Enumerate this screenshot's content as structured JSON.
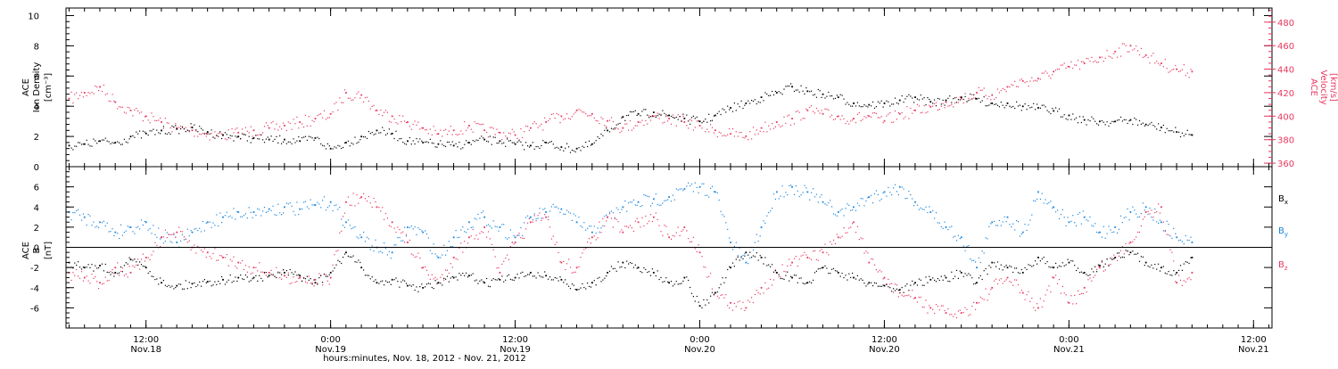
{
  "colors": {
    "density": "#000000",
    "velocity": "#e8385f",
    "bx": "#000000",
    "by": "#1a86de",
    "bz": "#e8385f",
    "axis": "#000000"
  },
  "x_axis": {
    "title": "hours:minutes, Nov. 18, 2012 - Nov. 21, 2012",
    "range_hours": [
      6.8,
      85.2
    ],
    "ticks": [
      {
        "hour": 12,
        "time": "12:00",
        "date": "Nov.18"
      },
      {
        "hour": 24,
        "time": "0:00",
        "date": "Nov.19"
      },
      {
        "hour": 36,
        "time": "12:00",
        "date": "Nov.19"
      },
      {
        "hour": 48,
        "time": "0:00",
        "date": "Nov.20"
      },
      {
        "hour": 60,
        "time": "12:00",
        "date": "Nov.20"
      },
      {
        "hour": 72,
        "time": "0:00",
        "date": "Nov.21"
      },
      {
        "hour": 84,
        "time": "12:00",
        "date": "Nov.21"
      }
    ]
  },
  "top_panel": {
    "left_label": [
      "ACE",
      "Ion Density",
      "[cm⁻³]"
    ],
    "right_label": [
      "ACE",
      "Velocity",
      "[km/s]"
    ],
    "left_ticks": [
      "0",
      "2",
      "4",
      "6",
      "8",
      "10"
    ],
    "right_ticks": [
      "360",
      "380",
      "400",
      "420",
      "440",
      "460",
      "480"
    ]
  },
  "bottom_panel": {
    "left_label": [
      "ACE",
      "B",
      "[nT]"
    ],
    "left_ticks": [
      "-6",
      "-4",
      "-2",
      "0",
      "2",
      "4",
      "6"
    ],
    "legend": [
      {
        "label": "B",
        "sub": "x",
        "color": "#000000"
      },
      {
        "label": "B",
        "sub": "y",
        "color": "#1a86de"
      },
      {
        "label": "B",
        "sub": "z",
        "color": "#e8385f"
      }
    ]
  },
  "chart_data": [
    {
      "type": "scatter",
      "title": "",
      "xlabel": "hours:minutes, Nov. 18, 2012 - Nov. 21, 2012",
      "xlim_hours_from_nov18_0000": [
        6.8,
        85.2
      ],
      "ylabel": "ACE Ion Density [cm⁻³]",
      "ylim": [
        0,
        10.5
      ],
      "y2label": "ACE Velocity [km/s]",
      "y2lim": [
        357,
        492
      ],
      "series": [
        {
          "name": "Ion Density",
          "axis": "left",
          "x_hours": [
            7,
            8,
            9,
            10,
            11,
            12,
            13,
            14,
            15,
            16,
            17,
            18,
            19,
            20,
            21,
            22,
            23,
            24,
            25,
            26,
            27,
            28,
            29,
            30,
            31,
            32,
            33,
            34,
            35,
            36,
            37,
            38,
            39,
            40,
            41,
            42,
            43,
            44,
            45,
            46,
            47,
            48,
            49,
            50,
            51,
            52,
            53,
            54,
            55,
            56,
            57,
            58,
            59,
            60,
            61,
            62,
            63,
            64,
            65,
            66,
            67,
            68,
            69,
            70,
            71,
            72,
            73,
            74,
            75,
            76,
            77,
            78,
            79,
            80
          ],
          "values": [
            1.4,
            1.5,
            1.7,
            1.6,
            2.0,
            2.2,
            2.4,
            2.5,
            2.6,
            2.3,
            2.1,
            2.0,
            1.9,
            1.8,
            1.8,
            1.7,
            1.9,
            1.2,
            1.6,
            2.0,
            2.4,
            2.2,
            1.7,
            1.6,
            1.5,
            1.4,
            1.6,
            1.8,
            1.7,
            1.5,
            1.4,
            1.6,
            1.3,
            1.2,
            1.5,
            2.4,
            3.3,
            3.5,
            3.6,
            3.4,
            3.2,
            3.0,
            3.4,
            3.9,
            4.2,
            4.6,
            4.9,
            5.3,
            5.0,
            4.8,
            4.6,
            4.2,
            4.1,
            4.2,
            4.4,
            4.6,
            4.3,
            4.4,
            4.6,
            4.5,
            4.2,
            4.2,
            4.0,
            3.9,
            3.7,
            3.4,
            3.1,
            3.0,
            3.0,
            3.1,
            2.8,
            2.6,
            2.3,
            2.1
          ]
        },
        {
          "name": "Velocity",
          "axis": "right",
          "x_hours": [
            7,
            8,
            9,
            10,
            11,
            12,
            13,
            14,
            15,
            16,
            17,
            18,
            19,
            20,
            21,
            22,
            23,
            24,
            25,
            26,
            27,
            28,
            29,
            30,
            31,
            32,
            33,
            34,
            35,
            36,
            37,
            38,
            39,
            40,
            41,
            42,
            43,
            44,
            45,
            46,
            47,
            48,
            49,
            50,
            51,
            52,
            53,
            54,
            55,
            56,
            57,
            58,
            59,
            60,
            61,
            62,
            63,
            64,
            65,
            66,
            67,
            68,
            69,
            70,
            71,
            72,
            73,
            74,
            75,
            76,
            77,
            78,
            79,
            80
          ],
          "values": [
            415,
            420,
            425,
            412,
            405,
            400,
            395,
            390,
            388,
            385,
            384,
            386,
            388,
            390,
            392,
            395,
            398,
            402,
            420,
            418,
            405,
            400,
            395,
            390,
            385,
            388,
            392,
            388,
            386,
            384,
            390,
            395,
            400,
            405,
            402,
            396,
            390,
            395,
            400,
            398,
            395,
            392,
            388,
            385,
            383,
            390,
            395,
            398,
            405,
            402,
            400,
            398,
            400,
            396,
            402,
            405,
            408,
            412,
            415,
            420,
            418,
            425,
            430,
            432,
            438,
            442,
            445,
            450,
            455,
            460,
            452,
            445,
            440,
            438
          ]
        }
      ]
    },
    {
      "type": "scatter",
      "title": "",
      "xlabel": "hours:minutes, Nov. 18, 2012 - Nov. 21, 2012",
      "xlim_hours_from_nov18_0000": [
        6.8,
        85.2
      ],
      "ylabel": "ACE B [nT]",
      "ylim": [
        -8,
        8
      ],
      "series": [
        {
          "name": "Bx",
          "x_hours": [
            7,
            8,
            9,
            10,
            11,
            12,
            13,
            14,
            15,
            16,
            17,
            18,
            19,
            20,
            21,
            22,
            23,
            24,
            25,
            26,
            27,
            28,
            29,
            30,
            31,
            32,
            33,
            34,
            35,
            36,
            37,
            38,
            39,
            40,
            41,
            42,
            43,
            44,
            45,
            46,
            47,
            48,
            49,
            50,
            51,
            52,
            53,
            54,
            55,
            56,
            57,
            58,
            59,
            60,
            61,
            62,
            63,
            64,
            65,
            66,
            67,
            68,
            69,
            70,
            71,
            72,
            73,
            74,
            75,
            76,
            77,
            78,
            79,
            80
          ],
          "values": [
            -1.5,
            -2.0,
            -1.8,
            -2.5,
            -1.2,
            -2.0,
            -3.5,
            -3.8,
            -3.6,
            -3.4,
            -3.2,
            -3.0,
            -3.0,
            -2.8,
            -2.5,
            -2.8,
            -3.5,
            -2.5,
            -0.5,
            -2.0,
            -3.5,
            -3.2,
            -3.8,
            -4.0,
            -3.5,
            -3.0,
            -2.8,
            -3.5,
            -3.2,
            -3.0,
            -2.5,
            -2.8,
            -3.2,
            -4.2,
            -3.5,
            -2.5,
            -1.5,
            -2.0,
            -2.5,
            -3.5,
            -3.0,
            -5.8,
            -4.5,
            -2.0,
            -0.5,
            -1.0,
            -2.5,
            -3.0,
            -3.5,
            -2.0,
            -2.5,
            -3.0,
            -3.5,
            -3.8,
            -4.2,
            -3.5,
            -3.2,
            -3.0,
            -2.5,
            -3.5,
            -1.5,
            -2.0,
            -2.5,
            -1.0,
            -2.0,
            -1.5,
            -2.5,
            -1.8,
            -1.0,
            -0.5,
            -1.5,
            -2.0,
            -2.5,
            -1.0
          ]
        },
        {
          "name": "By",
          "x_hours": [
            7,
            8,
            9,
            10,
            11,
            12,
            13,
            14,
            15,
            16,
            17,
            18,
            19,
            20,
            21,
            22,
            23,
            24,
            25,
            26,
            27,
            28,
            29,
            30,
            31,
            32,
            33,
            34,
            35,
            36,
            37,
            38,
            39,
            40,
            41,
            42,
            43,
            44,
            45,
            46,
            47,
            48,
            49,
            50,
            51,
            52,
            53,
            54,
            55,
            56,
            57,
            58,
            59,
            60,
            61,
            62,
            63,
            64,
            65,
            66,
            67,
            68,
            69,
            70,
            71,
            72,
            73,
            74,
            75,
            76,
            77,
            78,
            79,
            80
          ],
          "values": [
            3.5,
            3.0,
            2.5,
            1.5,
            2.0,
            2.5,
            1.0,
            0.5,
            1.5,
            2.5,
            3.0,
            3.5,
            3.5,
            3.8,
            4.0,
            3.8,
            4.2,
            4.5,
            2.5,
            1.0,
            0.0,
            -0.5,
            2.0,
            1.5,
            -1.0,
            1.0,
            2.5,
            3.0,
            2.0,
            1.0,
            3.0,
            3.5,
            3.8,
            2.5,
            1.5,
            3.0,
            4.0,
            4.5,
            4.8,
            5.0,
            5.8,
            6.0,
            5.5,
            0.5,
            -1.5,
            2.0,
            5.5,
            6.0,
            5.5,
            4.5,
            3.5,
            4.0,
            5.0,
            5.5,
            6.0,
            4.5,
            3.5,
            2.0,
            1.0,
            -2.0,
            2.5,
            3.0,
            1.5,
            5.5,
            4.0,
            2.5,
            3.0,
            1.5,
            2.0,
            3.5,
            4.0,
            2.5,
            1.0,
            0.5
          ]
        },
        {
          "name": "Bz",
          "x_hours": [
            7,
            8,
            9,
            10,
            11,
            12,
            13,
            14,
            15,
            16,
            17,
            18,
            19,
            20,
            21,
            22,
            23,
            24,
            25,
            26,
            27,
            28,
            29,
            30,
            31,
            32,
            33,
            34,
            35,
            36,
            37,
            38,
            39,
            40,
            41,
            42,
            43,
            44,
            45,
            46,
            47,
            48,
            49,
            50,
            51,
            52,
            53,
            54,
            55,
            56,
            57,
            58,
            59,
            60,
            61,
            62,
            63,
            64,
            65,
            66,
            67,
            68,
            69,
            70,
            71,
            72,
            73,
            74,
            75,
            76,
            77,
            78,
            79,
            80
          ],
          "values": [
            -2.5,
            -3.0,
            -3.5,
            -2.0,
            -2.5,
            -1.0,
            1.0,
            1.5,
            0.0,
            -0.5,
            -1.0,
            -1.5,
            -2.0,
            -2.5,
            -2.8,
            -3.0,
            -3.2,
            -3.0,
            4.5,
            5.0,
            4.0,
            2.5,
            0.5,
            -2.0,
            -3.5,
            -1.0,
            1.0,
            2.0,
            -2.5,
            0.5,
            2.5,
            3.0,
            -1.5,
            -2.0,
            1.0,
            3.0,
            1.5,
            2.5,
            3.0,
            1.0,
            2.0,
            -0.5,
            -4.5,
            -5.5,
            -6.0,
            -4.0,
            -2.5,
            -1.5,
            -1.0,
            -0.5,
            1.0,
            2.5,
            -1.5,
            -3.0,
            -4.5,
            -5.0,
            -6.0,
            -6.5,
            -6.5,
            -5.5,
            -4.0,
            -3.0,
            -4.5,
            -6.0,
            -3.0,
            -5.5,
            -4.0,
            -2.0,
            -1.0,
            0.5,
            3.5,
            4.0,
            -3.5,
            -2.5
          ]
        }
      ]
    }
  ]
}
